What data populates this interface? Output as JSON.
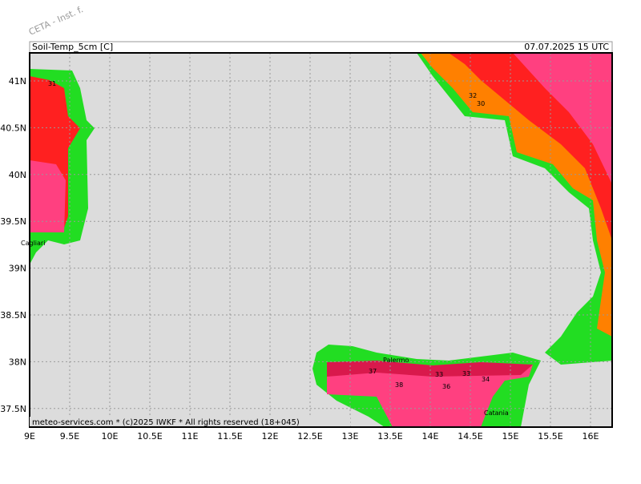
{
  "header": {
    "watermark": "CETA - Inst. f.",
    "title": "Soil-Temp_5cm [C]",
    "valid_time": "07.07.2025 15 UTC"
  },
  "footer": "meteo-services.com * (c)2025 IWKF * All rights reserved (18+045)",
  "axes": {
    "x_labels": [
      "9E",
      "9.5E",
      "10E",
      "10.5E",
      "11E",
      "11.5E",
      "12E",
      "12.5E",
      "13E",
      "13.5E",
      "14E",
      "14.5E",
      "15E",
      "15.5E",
      "16E"
    ],
    "y_labels": [
      "41N",
      "40.5N",
      "40N",
      "39.5N",
      "39N",
      "38.5N",
      "38N",
      "37.5N"
    ]
  },
  "places": [
    "Cagliari",
    "Palermo",
    "Catania"
  ],
  "contour_labels": [
    31,
    37,
    38,
    36,
    33,
    34,
    33,
    32,
    30
  ]
}
